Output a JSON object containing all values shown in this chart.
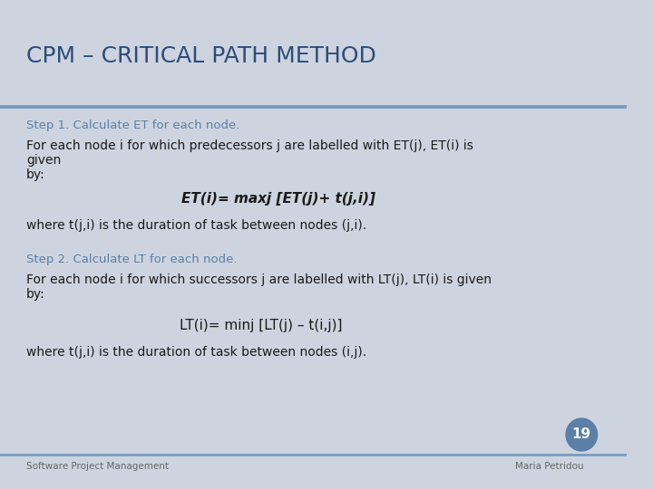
{
  "title": "CPM – CRITICAL PATH METHOD",
  "title_color": "#2E4D7B",
  "title_fontsize": 18,
  "bg_color": "#FFFFFF",
  "slide_bg": "#CDD4DF",
  "divider_color": "#7A9BC0",
  "step1_heading": "Step 1. Calculate ET for each node.",
  "step1_body": "For each node i for which predecessors j are labelled with ET(j), ET(i) is given\nby:",
  "step1_formula": "ET(i)= maxj [ET(j)+ t(j,i)]",
  "step1_where": "where t(j,i) is the duration of task between nodes (j,i).",
  "step2_heading": "Step 2. Calculate LT for each node.",
  "step2_body": "For each node i for which successors j are labelled with LT(j), LT(i) is given\nby:",
  "step2_formula": "LT(i)= minj [LT(j) – t(i,j)]",
  "step2_where": "where t(j,i) is the duration of task between nodes (i,j).",
  "footer_left": "Software Project Management",
  "footer_right": "Maria Petridou",
  "page_number": "19",
  "page_number_bg": "#5B7FA6",
  "heading_color": "#5B7FA6",
  "body_color": "#1a1a1a",
  "footer_color": "#666666"
}
